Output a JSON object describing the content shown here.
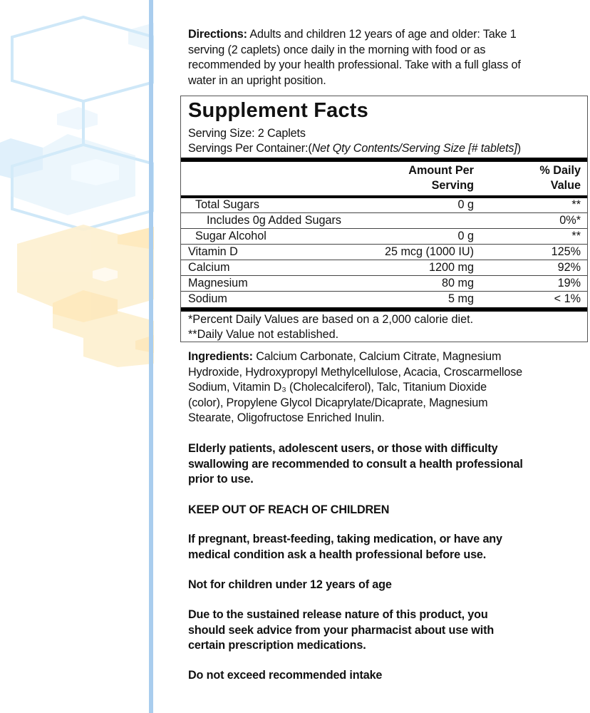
{
  "colors": {
    "accent_blue": "#a9cdee",
    "hex_blue": "#d6ecfa",
    "hex_yellow": "#fdf0cf"
  },
  "directions": {
    "label": "Directions:",
    "text": " Adults and children 12 years of age and older: Take 1\nserving (2 caplets) once daily in the morning with food or as\nrecommended by your health professional. Take with a full glass of\nwater in an upright position."
  },
  "facts": {
    "title": "Supplement Facts",
    "serving_size": "Serving Size: 2 Caplets",
    "servings_per_container_label": "Servings Per Container:(",
    "servings_per_container_value": "Net Qty Contents/Serving Size [# tablets]",
    "servings_per_container_end": ")",
    "header_amount": "Amount Per\nServing",
    "header_dv": "% Daily\nValue",
    "rows": [
      {
        "name": "Total Sugars",
        "amount": "0 g",
        "dv": "**"
      },
      {
        "name": "Includes 0g Added Sugars",
        "amount": "",
        "dv": "0%*"
      },
      {
        "name": "Sugar Alcohol",
        "amount": "0 g",
        "dv": "**"
      },
      {
        "name": "Vitamin D",
        "amount": "25 mcg (1000 IU)",
        "dv": "125%"
      },
      {
        "name": "Calcium",
        "amount": "1200 mg",
        "dv": "92%"
      },
      {
        "name": "Magnesium",
        "amount": "80 mg",
        "dv": "19%"
      },
      {
        "name": "Sodium",
        "amount": "5 mg",
        "dv": "< 1%"
      }
    ],
    "footnote1": " *Percent Daily Values are based on a 2,000 calorie diet.",
    "footnote2": "**Daily Value not established."
  },
  "ingredients": {
    "label": "Ingredients:",
    "text": " Calcium Carbonate,  Calcium Citrate, Magnesium\nHydroxide, Hydroxypropyl Methylcellulose, Acacia, Croscarmellose\nSodium,  Vitamin D₃ (Cholecalciferol), Talc, Titanium Dioxide\n(color), Propylene Glycol Dicaprylate/Dicaprate, Magnesium\nStearate, Oligofructose Enriched Inulin."
  },
  "warnings": [
    "Elderly patients, adolescent users, or those with difficulty\nswallowing are recommended to consult a health professional\nprior to use.",
    "KEEP OUT OF REACH OF CHILDREN",
    "If pregnant, breast-feeding, taking medication, or have any\nmedical condition ask a health professional before use.",
    "Not for children under 12 years of age",
    "Due to the sustained release nature of this product, you\nshould seek advice from your pharmacist about use with\ncertain prescription medications.",
    "Do not exceed  recommended intake"
  ]
}
